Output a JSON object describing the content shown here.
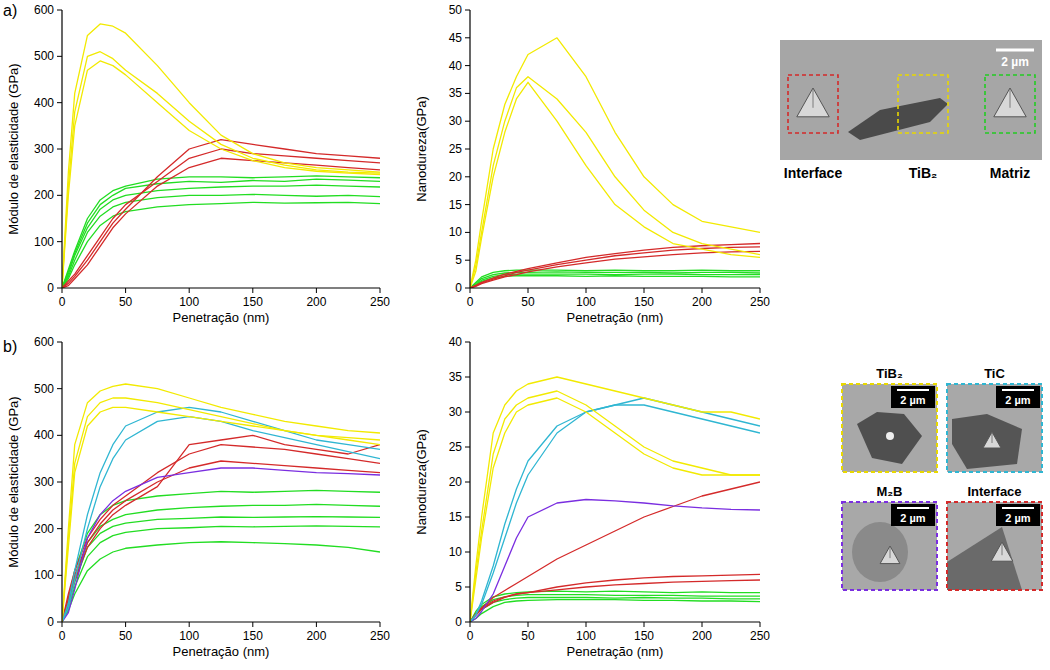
{
  "chart_data": [
    {
      "type": "line",
      "x_label": "Penetração (nm)",
      "y_label": "Módulo de elasticidade (GPa)",
      "x": [
        0,
        5,
        10,
        20,
        30,
        40,
        50,
        75,
        100,
        125,
        150,
        175,
        200,
        225,
        250
      ],
      "xlim": [
        0,
        250
      ],
      "xticks": [
        0,
        50,
        100,
        150,
        200,
        250
      ],
      "ylim": [
        0,
        600
      ],
      "yticks": [
        0,
        100,
        200,
        300,
        400,
        500,
        600
      ],
      "series": [
        {
          "color": "#22dd22",
          "values": [
            0,
            40,
            80,
            150,
            190,
            210,
            220,
            235,
            240,
            240,
            238,
            240,
            242,
            240,
            238
          ]
        },
        {
          "color": "#22dd22",
          "values": [
            0,
            30,
            70,
            130,
            170,
            190,
            200,
            210,
            215,
            218,
            220,
            220,
            222,
            220,
            218
          ]
        },
        {
          "color": "#22dd22",
          "values": [
            0,
            25,
            60,
            120,
            155,
            175,
            185,
            195,
            200,
            200,
            202,
            200,
            198,
            200,
            197
          ]
        },
        {
          "color": "#22dd22",
          "values": [
            0,
            20,
            50,
            100,
            135,
            155,
            165,
            175,
            180,
            182,
            185,
            183,
            184,
            185,
            182
          ]
        },
        {
          "color": "#22dd22",
          "values": [
            0,
            35,
            75,
            140,
            180,
            200,
            215,
            225,
            230,
            228,
            232,
            230,
            235,
            233,
            230
          ]
        },
        {
          "color": "#d42a2a",
          "values": [
            0,
            10,
            25,
            60,
            100,
            140,
            170,
            240,
            300,
            320,
            310,
            300,
            290,
            285,
            280
          ]
        },
        {
          "color": "#d42a2a",
          "values": [
            0,
            15,
            30,
            70,
            110,
            150,
            180,
            230,
            280,
            300,
            290,
            285,
            280,
            275,
            270
          ]
        },
        {
          "color": "#d42a2a",
          "values": [
            0,
            5,
            20,
            50,
            90,
            130,
            160,
            220,
            260,
            280,
            275,
            270,
            265,
            260,
            255
          ]
        },
        {
          "color": "#f2ea00",
          "values": [
            0,
            250,
            420,
            545,
            570,
            565,
            550,
            480,
            400,
            330,
            290,
            270,
            260,
            255,
            250
          ]
        },
        {
          "color": "#f2ea00",
          "values": [
            0,
            220,
            380,
            500,
            510,
            495,
            470,
            420,
            360,
            310,
            280,
            265,
            255,
            250,
            248
          ]
        },
        {
          "color": "#f2ea00",
          "values": [
            0,
            200,
            350,
            470,
            490,
            480,
            460,
            400,
            340,
            300,
            275,
            260,
            252,
            248,
            245
          ]
        }
      ]
    },
    {
      "type": "line",
      "x_label": "Penetração (nm)",
      "y_label": "Nanodureza(GPa)",
      "x": [
        0,
        5,
        10,
        20,
        30,
        40,
        50,
        75,
        100,
        125,
        150,
        175,
        200,
        225,
        250
      ],
      "xlim": [
        0,
        250
      ],
      "xticks": [
        0,
        50,
        100,
        150,
        200,
        250
      ],
      "ylim": [
        0,
        50
      ],
      "yticks": [
        0,
        5,
        10,
        15,
        20,
        25,
        30,
        35,
        40,
        45,
        50
      ],
      "series": [
        {
          "color": "#22dd22",
          "values": [
            0,
            1,
            2,
            2.8,
            3.1,
            3.2,
            3.2,
            3.2,
            3.1,
            3.2,
            3.1,
            3.1,
            3.2,
            3.1,
            3.1
          ]
        },
        {
          "color": "#22dd22",
          "values": [
            0,
            0.8,
            1.7,
            2.4,
            2.7,
            2.8,
            2.8,
            2.9,
            2.8,
            2.8,
            2.8,
            2.7,
            2.8,
            2.8,
            2.7
          ]
        },
        {
          "color": "#22dd22",
          "values": [
            0,
            0.6,
            1.4,
            2.1,
            2.4,
            2.5,
            2.5,
            2.5,
            2.5,
            2.4,
            2.5,
            2.5,
            2.4,
            2.4,
            2.4
          ]
        },
        {
          "color": "#22dd22",
          "values": [
            0,
            0.5,
            1.2,
            1.8,
            2.1,
            2.2,
            2.2,
            2.2,
            2.1,
            2.2,
            2.1,
            2.1,
            2.1,
            2,
            2
          ]
        },
        {
          "color": "#d42a2a",
          "values": [
            0,
            0.5,
            1,
            1.8,
            2.5,
            3,
            3.5,
            4.5,
            5.5,
            6.2,
            6.8,
            7.3,
            7.6,
            7.8,
            8
          ]
        },
        {
          "color": "#d42a2a",
          "values": [
            0,
            0.4,
            0.9,
            1.6,
            2.2,
            2.8,
            3.2,
            4.2,
            5,
            5.8,
            6.3,
            6.8,
            7.1,
            7.3,
            7.4
          ]
        },
        {
          "color": "#d42a2a",
          "values": [
            0,
            0.3,
            0.8,
            1.4,
            2,
            2.4,
            2.9,
            3.8,
            4.5,
            5.2,
            5.6,
            6,
            6.3,
            6.5,
            6.6
          ]
        },
        {
          "color": "#f2ea00",
          "values": [
            0,
            5,
            12,
            25,
            33,
            38,
            42,
            45,
            38,
            28,
            20,
            15,
            12,
            11,
            10
          ]
        },
        {
          "color": "#f2ea00",
          "values": [
            0,
            4,
            10,
            22,
            30,
            36,
            38,
            34,
            28,
            20,
            14,
            10,
            8,
            7,
            6
          ]
        },
        {
          "color": "#f2ea00",
          "values": [
            0,
            3,
            9,
            20,
            28,
            34,
            37,
            30,
            22,
            15,
            11,
            8,
            7,
            6,
            5.5
          ]
        }
      ]
    },
    {
      "type": "line",
      "x_label": "Penetração (nm)",
      "y_label": "Módulo de elasticidade (GPa)",
      "x": [
        0,
        5,
        10,
        20,
        30,
        40,
        50,
        75,
        100,
        125,
        150,
        175,
        200,
        225,
        250
      ],
      "xlim": [
        0,
        250
      ],
      "xticks": [
        0,
        50,
        100,
        150,
        200,
        250
      ],
      "ylim": [
        0,
        600
      ],
      "yticks": [
        0,
        100,
        200,
        300,
        400,
        500,
        600
      ],
      "series": [
        {
          "color": "#22dd22",
          "values": [
            0,
            50,
            110,
            190,
            230,
            250,
            260,
            270,
            275,
            280,
            278,
            280,
            282,
            280,
            278
          ]
        },
        {
          "color": "#22dd22",
          "values": [
            0,
            40,
            95,
            170,
            205,
            220,
            230,
            240,
            245,
            248,
            250,
            250,
            252,
            250,
            248
          ]
        },
        {
          "color": "#22dd22",
          "values": [
            0,
            35,
            85,
            160,
            190,
            205,
            212,
            220,
            222,
            225,
            224,
            225,
            226,
            225,
            224
          ]
        },
        {
          "color": "#22dd22",
          "values": [
            0,
            30,
            75,
            140,
            170,
            185,
            192,
            200,
            202,
            205,
            204,
            205,
            206,
            205,
            204
          ]
        },
        {
          "color": "#22dd22",
          "values": [
            0,
            25,
            60,
            110,
            135,
            150,
            158,
            165,
            170,
            172,
            170,
            168,
            165,
            160,
            150
          ]
        },
        {
          "color": "#d42a2a",
          "values": [
            0,
            60,
            110,
            180,
            220,
            250,
            270,
            320,
            360,
            380,
            375,
            370,
            360,
            350,
            340
          ]
        },
        {
          "color": "#d42a2a",
          "values": [
            0,
            50,
            100,
            170,
            210,
            240,
            260,
            300,
            330,
            345,
            340,
            335,
            330,
            325,
            320
          ]
        },
        {
          "color": "#d42a2a",
          "values": [
            0,
            40,
            90,
            160,
            200,
            230,
            250,
            290,
            380,
            390,
            400,
            380,
            370,
            360,
            380
          ]
        },
        {
          "color": "#7a2ee0",
          "values": [
            0,
            20,
            70,
            180,
            230,
            260,
            280,
            310,
            320,
            330,
            330,
            325,
            320,
            318,
            315
          ]
        },
        {
          "color": "#2fb6d2",
          "values": [
            0,
            40,
            110,
            230,
            320,
            380,
            420,
            450,
            460,
            450,
            430,
            410,
            390,
            380,
            370
          ]
        },
        {
          "color": "#2fb6d2",
          "values": [
            0,
            30,
            90,
            200,
            290,
            350,
            390,
            430,
            440,
            430,
            410,
            395,
            380,
            365,
            350
          ]
        },
        {
          "color": "#f2ea00",
          "values": [
            0,
            200,
            380,
            470,
            495,
            505,
            510,
            500,
            480,
            460,
            445,
            430,
            420,
            410,
            405
          ]
        },
        {
          "color": "#f2ea00",
          "values": [
            0,
            180,
            340,
            440,
            470,
            480,
            480,
            470,
            455,
            440,
            425,
            410,
            400,
            395,
            390
          ]
        },
        {
          "color": "#f2ea00",
          "values": [
            0,
            160,
            320,
            420,
            450,
            460,
            460,
            450,
            440,
            430,
            420,
            410,
            400,
            390,
            380
          ]
        }
      ]
    },
    {
      "type": "line",
      "x_label": "Penetração (nm)",
      "y_label": "Nanodureza(GPa)",
      "x": [
        0,
        5,
        10,
        20,
        30,
        40,
        50,
        75,
        100,
        125,
        150,
        175,
        200,
        225,
        250
      ],
      "xlim": [
        0,
        250
      ],
      "xticks": [
        0,
        50,
        100,
        150,
        200,
        250
      ],
      "ylim": [
        0,
        40
      ],
      "yticks": [
        0,
        5,
        10,
        15,
        20,
        25,
        30,
        35,
        40
      ],
      "series": [
        {
          "color": "#22dd22",
          "values": [
            0,
            1.5,
            2.5,
            3.6,
            4,
            4.2,
            4.3,
            4.4,
            4.3,
            4.4,
            4.3,
            4.2,
            4.3,
            4.2,
            4.2
          ]
        },
        {
          "color": "#22dd22",
          "values": [
            0,
            1.2,
            2.2,
            3.2,
            3.6,
            3.8,
            3.9,
            3.9,
            3.9,
            3.8,
            3.8,
            3.8,
            3.7,
            3.7,
            3.7
          ]
        },
        {
          "color": "#22dd22",
          "values": [
            0,
            1,
            1.8,
            2.8,
            3.2,
            3.4,
            3.5,
            3.5,
            3.5,
            3.4,
            3.5,
            3.4,
            3.4,
            3.3,
            3.3
          ]
        },
        {
          "color": "#22dd22",
          "values": [
            0,
            0.5,
            1.2,
            2.2,
            2.8,
            3,
            3.1,
            3.2,
            3.2,
            3.2,
            3.1,
            3.1,
            3,
            3,
            2.9
          ]
        },
        {
          "color": "#d42a2a",
          "values": [
            0,
            1,
            2,
            3.5,
            4.5,
            5.5,
            6.5,
            9,
            11,
            13,
            15,
            16.5,
            18,
            19,
            20
          ]
        },
        {
          "color": "#d42a2a",
          "values": [
            0,
            1.2,
            2,
            3,
            3.6,
            4,
            4.2,
            5,
            5.6,
            6,
            6.3,
            6.5,
            6.6,
            6.7,
            6.8
          ]
        },
        {
          "color": "#d42a2a",
          "values": [
            0,
            1,
            1.8,
            2.8,
            3.5,
            4,
            4.2,
            4.6,
            5,
            5.3,
            5.5,
            5.7,
            5.8,
            5.9,
            6
          ]
        },
        {
          "color": "#7a2ee0",
          "values": [
            0,
            0.5,
            1.5,
            4,
            8,
            12,
            15,
            17,
            17.5,
            17.3,
            17,
            16.6,
            16.3,
            16.1,
            16
          ]
        },
        {
          "color": "#2fb6d2",
          "values": [
            0,
            1,
            3,
            8,
            14,
            19,
            23,
            28,
            30,
            31,
            31,
            30,
            29,
            28,
            27
          ]
        },
        {
          "color": "#2fb6d2",
          "values": [
            0,
            1,
            2.5,
            7,
            12,
            17,
            21,
            27,
            30,
            31,
            32,
            31,
            30,
            29,
            28
          ]
        },
        {
          "color": "#f2ea00",
          "values": [
            0,
            8,
            15,
            27,
            31,
            33,
            34,
            35,
            34,
            33,
            32,
            31,
            30,
            30,
            29
          ]
        },
        {
          "color": "#f2ea00",
          "values": [
            0,
            7,
            13,
            24,
            29,
            31,
            32,
            33,
            31,
            28,
            25,
            23,
            22,
            21,
            21
          ]
        },
        {
          "color": "#f2ea00",
          "values": [
            0,
            6,
            12,
            22,
            27,
            30,
            31,
            32,
            30,
            27,
            24,
            22,
            21,
            21,
            21
          ]
        }
      ]
    }
  ],
  "figure": {
    "rows": [
      {
        "label": "a)",
        "scale_bar": "2 µm",
        "images": [
          {
            "label": "Interface",
            "color": "#d42a2a"
          },
          {
            "label": "TiB₂",
            "color": "#e8d800"
          },
          {
            "label": "Matriz",
            "color": "#22cc22"
          }
        ]
      },
      {
        "label": "b)",
        "scale_bar": "2 µm",
        "images": [
          {
            "label": "TiB₂",
            "color": "#e8d800"
          },
          {
            "label": "TiC",
            "color": "#2fb6d2"
          },
          {
            "label": "M₂B",
            "color": "#7a2ee0"
          },
          {
            "label": "Interface",
            "color": "#d42a2a"
          }
        ]
      }
    ]
  }
}
